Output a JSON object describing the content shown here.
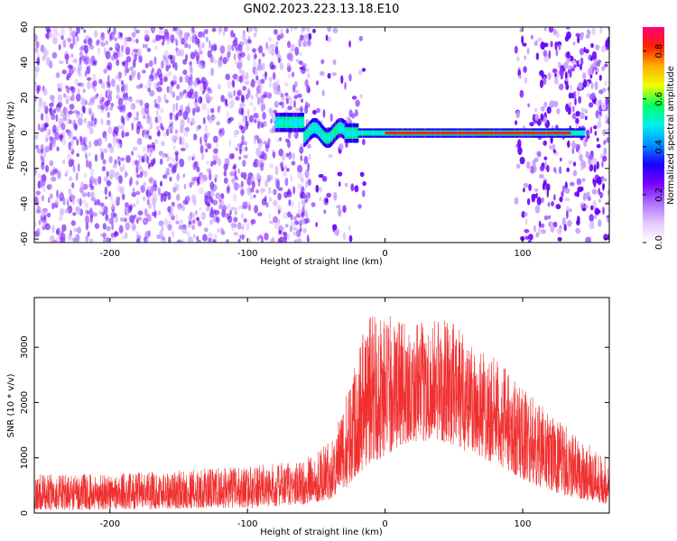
{
  "title": "GN02.2023.223.13.18.E10",
  "chart_data": [
    {
      "type": "heatmap",
      "title": "GN02.2023.223.13.18.E10",
      "xlabel": "Height of straight line (km)",
      "ylabel": "Frequency (Hz)",
      "xlim": [
        -255,
        163
      ],
      "ylim": [
        -62,
        60
      ],
      "xticks": [
        -200,
        -100,
        0,
        100
      ],
      "yticks": [
        -60,
        -40,
        -20,
        0,
        20,
        40,
        60
      ],
      "colorbar": {
        "label": "Normalized spectral amplitude",
        "range": [
          0,
          0.9
        ],
        "ticks": [
          0.0,
          0.2,
          0.4,
          0.6,
          0.8
        ],
        "colors": [
          "#ffffff",
          "#e4c8ff",
          "#b070ff",
          "#7a00ff",
          "#1a00ff",
          "#0090ff",
          "#00f0f0",
          "#00ff60",
          "#f0ff00",
          "#ffb000",
          "#ff2000",
          "#ff007a"
        ]
      },
      "features": [
        {
          "name": "broadband noise",
          "x_range": [
            -255,
            -55
          ],
          "freq_range": [
            -60,
            60
          ],
          "amplitude": 0.15
        },
        {
          "name": "sparse noise",
          "x_range": [
            -55,
            -15
          ],
          "freq_range": [
            -60,
            60
          ],
          "amplitude": 0.05
        },
        {
          "name": "broadband noise",
          "x_range": [
            100,
            163
          ],
          "freq_range": [
            -60,
            60
          ],
          "amplitude": 0.08
        },
        {
          "name": "signal band",
          "x_range": [
            -80,
            145
          ],
          "freq_center": 0,
          "amplitude": 0.9
        }
      ]
    },
    {
      "type": "line",
      "xlabel": "Height of straight line (km)",
      "ylabel": "SNR (10 * v/v)",
      "xlim": [
        -255,
        163
      ],
      "ylim": [
        0,
        3900
      ],
      "xticks": [
        -200,
        -100,
        0,
        100
      ],
      "yticks": [
        0,
        1000,
        2000,
        3000
      ],
      "line_color": "#f03030",
      "envelope": {
        "x": [
          -255,
          -200,
          -150,
          -100,
          -60,
          -40,
          -30,
          -20,
          -10,
          0,
          10,
          20,
          40,
          60,
          80,
          100,
          120,
          140,
          163
        ],
        "max": [
          700,
          720,
          780,
          850,
          950,
          1300,
          1900,
          3200,
          3800,
          3600,
          3500,
          3400,
          3550,
          3300,
          2800,
          2300,
          1800,
          1400,
          1000
        ],
        "min": [
          50,
          60,
          80,
          100,
          150,
          250,
          400,
          700,
          900,
          1000,
          1200,
          1300,
          1300,
          1100,
          900,
          600,
          400,
          250,
          150
        ]
      }
    }
  ]
}
